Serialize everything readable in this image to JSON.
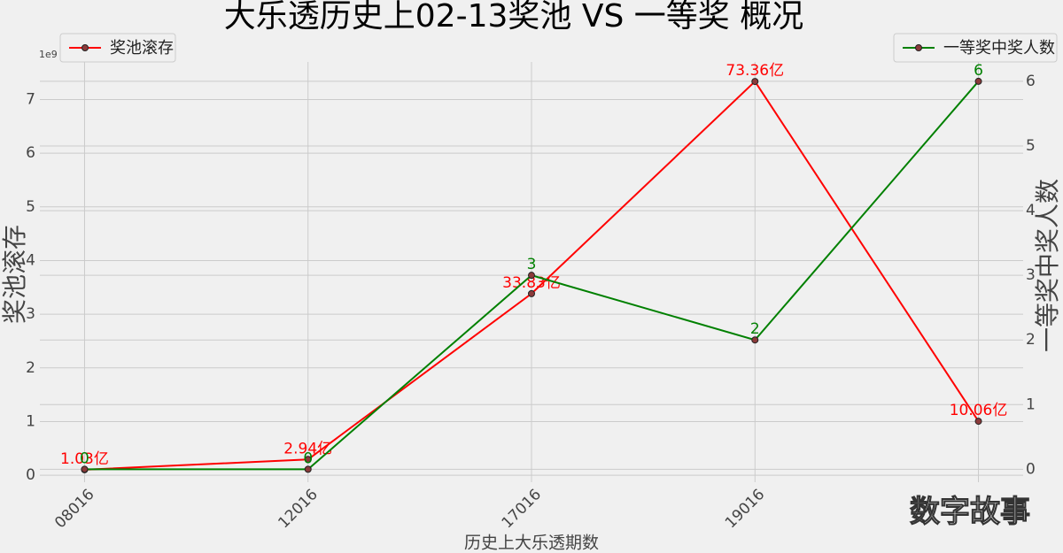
{
  "chart_data": {
    "type": "line",
    "title": "大乐透历史上02-13奖池 VS 一等奖 概况",
    "x_label": "历史上大乐透期数",
    "y_label": "奖池滚存",
    "y2_label": "一等奖中奖人数",
    "y_offset_label": "1e9",
    "watermark": "数字故事",
    "categories": [
      "08016",
      "12016",
      "17016",
      "19016",
      null
    ],
    "series": [
      {
        "name": "奖池滚存",
        "color": "#ff0000",
        "values": [
          0.103,
          0.294,
          3.383,
          7.336,
          1.006
        ],
        "value_labels": [
          "1.03亿",
          "2.94亿",
          "33.83亿",
          "73.36亿",
          "10.06亿"
        ],
        "legend": "upper left"
      },
      {
        "name": "一等奖中奖人数",
        "color": "#008000",
        "axis": "y2",
        "values": [
          0,
          0,
          3,
          2,
          6
        ],
        "legend": "upper right"
      }
    ],
    "ylim": [
      -0.13,
      7.7
    ],
    "yticks": [
      0,
      1,
      2,
      3,
      4,
      5,
      6,
      7
    ],
    "y2lim": [
      -0.2,
      6.3
    ],
    "y2ticks": [
      0,
      1,
      2,
      3,
      4,
      5,
      6
    ],
    "grid": true
  }
}
